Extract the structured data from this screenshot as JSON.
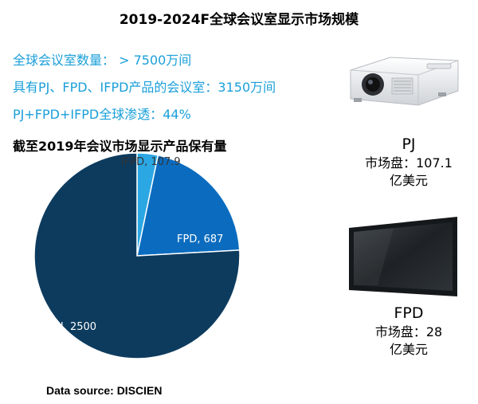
{
  "title": "2019-2024F全球会议室显示市场规模",
  "stats": [
    "全球会议室数量： > 7500万间",
    "具有PJ、FPD、IFPD产品的会议室：3150万间",
    "PJ+FPD+IFPD全球渗透：44%"
  ],
  "chart_subtitle": "截至2019年会议市场显示产品保有量",
  "source": "Data source: DISCIEN",
  "products": [
    {
      "name": "PJ",
      "market_label": "市场盘：107.1",
      "unit": "亿美元"
    },
    {
      "name": "FPD",
      "market_label": "市场盘：28",
      "unit": "亿美元"
    }
  ],
  "chart_data": {
    "type": "pie",
    "slices": [
      {
        "label": "IFPD",
        "value": 107.9,
        "display": "IFPD, 107.9",
        "color": "#2ba7e4"
      },
      {
        "label": "FPD",
        "value": 687,
        "display": "FPD, 687",
        "color": "#0b6cbf"
      },
      {
        "label": "PJ",
        "value": 2500,
        "display": "PJ, 2500",
        "color": "#0d3b5e"
      }
    ]
  }
}
